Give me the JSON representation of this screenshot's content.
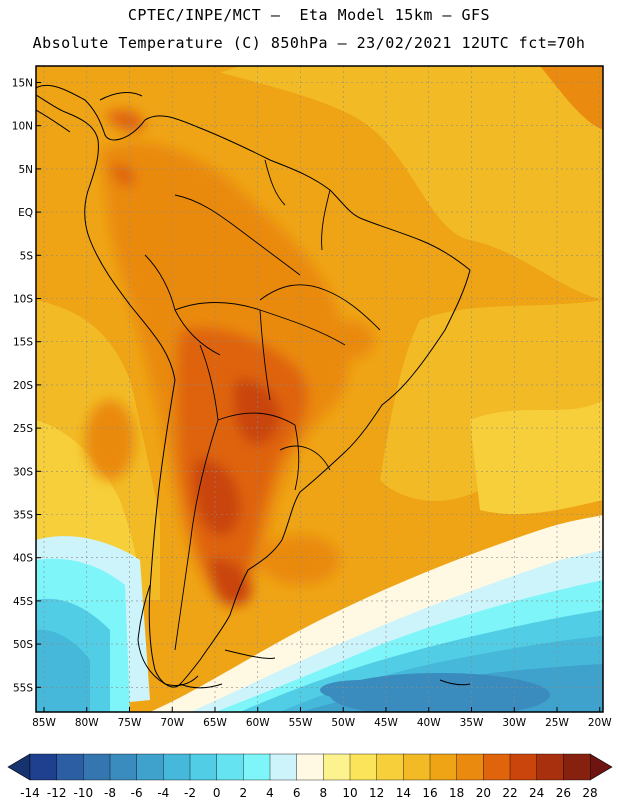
{
  "header": {
    "line1": "CPTEC/INPE/MCT –  Eta Model 15km – GFS",
    "line2": "Absolute Temperature (C) 850hPa – 23/02/2021 12UTC fct=70h"
  },
  "map": {
    "lat_labels": [
      "15N",
      "10N",
      "5N",
      "EQ",
      "5S",
      "10S",
      "15S",
      "20S",
      "25S",
      "30S",
      "35S",
      "40S",
      "45S",
      "50S",
      "55S"
    ],
    "lon_labels": [
      "85W",
      "80W",
      "75W",
      "70W",
      "65W",
      "60W",
      "55W",
      "50W",
      "45W",
      "40W",
      "35W",
      "30W",
      "25W",
      "20W"
    ]
  },
  "colorbar": {
    "ticks": [
      "-14",
      "-12",
      "-10",
      "-8",
      "-6",
      "-4",
      "-2",
      "0",
      "2",
      "4",
      "6",
      "8",
      "10",
      "12",
      "14",
      "16",
      "18",
      "20",
      "22",
      "24",
      "26",
      "28"
    ],
    "colors": [
      "#1f3f8f",
      "#2c5ea3",
      "#3576b0",
      "#3a8cbf",
      "#3fa2cc",
      "#46b8da",
      "#51cde6",
      "#66e3f0",
      "#7ef5f8",
      "#cdf3fb",
      "#fff8e2",
      "#fdf38e",
      "#fbe45a",
      "#f6cf3a",
      "#f2bb26",
      "#efa416",
      "#ea8a0e",
      "#df640c",
      "#c9450c",
      "#a8300e",
      "#86210f"
    ],
    "under_color": "#17336f",
    "over_color": "#6e1512"
  }
}
